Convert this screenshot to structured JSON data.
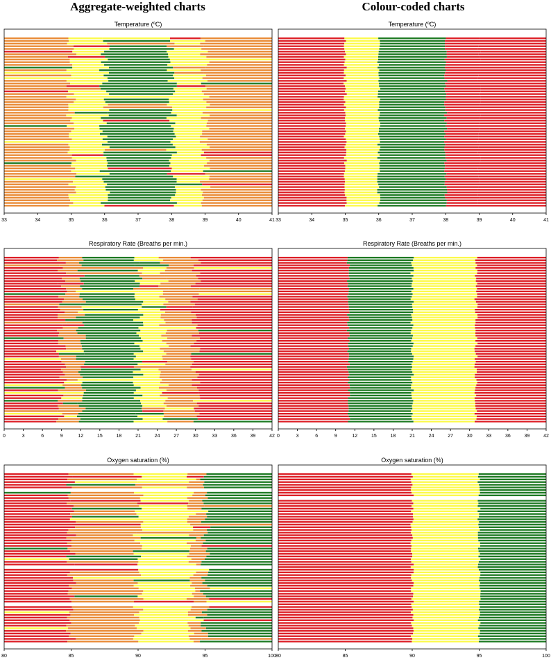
{
  "headers": {
    "left": "Aggregate-weighted charts",
    "right": "Colour-coded charts"
  },
  "colors": {
    "red": "#dd1f26",
    "orange": "#e98a35",
    "yellow": "#fcfa4a",
    "green": "#1e7a23"
  },
  "chart_data": [
    {
      "id": "agg-temp",
      "type": "bar",
      "style": "aggregate",
      "title": "Temperature (ºC)",
      "xlim": [
        33,
        41
      ],
      "ticks": [
        33,
        34,
        35,
        36,
        37,
        38,
        39,
        40,
        41
      ],
      "rows": 64,
      "seed": 11,
      "bands": [
        {
          "to": 35.0,
          "color": "orange"
        },
        {
          "to": 36.0,
          "color": "yellow"
        },
        {
          "to": 38.0,
          "color": "green"
        },
        {
          "to": 39.0,
          "color": "yellow"
        },
        {
          "to": 41.0,
          "color": "orange"
        }
      ],
      "gaps": []
    },
    {
      "id": "cc-temp",
      "type": "bar",
      "style": "colour-coded",
      "title": "Temperature (ºC)",
      "xlim": [
        33,
        41
      ],
      "ticks": [
        33,
        34,
        35,
        36,
        37,
        38,
        39,
        40,
        41
      ],
      "rows": 64,
      "seed": 23,
      "bands": [
        {
          "to": 35.0,
          "color": "red"
        },
        {
          "to": 36.0,
          "color": "yellow"
        },
        {
          "to": 38.0,
          "color": "green"
        },
        {
          "to": 39.0,
          "color": "red"
        },
        {
          "to": 41.0,
          "color": "red"
        }
      ],
      "gaps": []
    },
    {
      "id": "agg-rr",
      "type": "bar",
      "style": "aggregate",
      "title": "Respiratory Rate (Breaths per min.)",
      "xlim": [
        0,
        42
      ],
      "ticks": [
        0,
        3,
        6,
        9,
        12,
        15,
        18,
        21,
        24,
        27,
        30,
        33,
        36,
        39,
        42
      ],
      "rows": 64,
      "seed": 37,
      "bands": [
        {
          "to": 9.0,
          "color": "red"
        },
        {
          "to": 12.0,
          "color": "orange"
        },
        {
          "to": 21.0,
          "color": "green"
        },
        {
          "to": 25.0,
          "color": "yellow"
        },
        {
          "to": 30.0,
          "color": "orange"
        },
        {
          "to": 42.0,
          "color": "red"
        }
      ],
      "gaps": []
    },
    {
      "id": "cc-rr",
      "type": "bar",
      "style": "colour-coded",
      "title": "Respiratory Rate (Breaths per min.)",
      "xlim": [
        0,
        42
      ],
      "ticks": [
        0,
        3,
        6,
        9,
        12,
        15,
        18,
        21,
        24,
        27,
        30,
        33,
        36,
        39,
        42
      ],
      "rows": 64,
      "seed": 41,
      "bands": [
        {
          "to": 11.0,
          "color": "red"
        },
        {
          "to": 21.0,
          "color": "green"
        },
        {
          "to": 31.0,
          "color": "yellow"
        },
        {
          "to": 42.0,
          "color": "red"
        }
      ],
      "gaps": []
    },
    {
      "id": "agg-spo2",
      "type": "bar",
      "style": "aggregate",
      "title": "Oxygen saturation (%)",
      "xlim": [
        80,
        100
      ],
      "ticks": [
        80,
        85,
        90,
        95,
        100
      ],
      "rows": 64,
      "seed": 53,
      "bands": [
        {
          "to": 85.0,
          "color": "red"
        },
        {
          "to": 90.0,
          "color": "orange"
        },
        {
          "to": 94.0,
          "color": "yellow"
        },
        {
          "to": 95.0,
          "color": "orange"
        },
        {
          "to": 100.0,
          "color": "green"
        }
      ],
      "gaps": [
        6,
        35,
        49
      ]
    },
    {
      "id": "cc-spo2",
      "type": "bar",
      "style": "colour-coded",
      "title": "Oxygen saturation (%)",
      "xlim": [
        80,
        100
      ],
      "ticks": [
        80,
        85,
        90,
        95,
        100
      ],
      "rows": 64,
      "seed": 67,
      "bands": [
        {
          "to": 90.0,
          "color": "red"
        },
        {
          "to": 95.0,
          "color": "yellow"
        },
        {
          "to": 100.0,
          "color": "green"
        }
      ],
      "gaps": [
        9
      ]
    }
  ]
}
